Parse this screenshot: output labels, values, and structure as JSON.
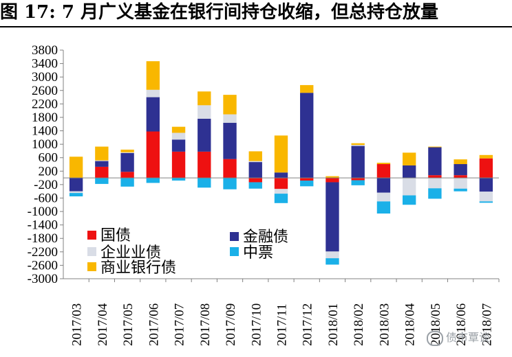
{
  "title": "图 17:  7 月广义基金在银行间持仓收缩，但总持仓放量",
  "watermark": "债市覃谈",
  "chart_data": {
    "type": "bar",
    "stacked": true,
    "categories": [
      "2017/03",
      "2017/04",
      "2017/05",
      "2017/06",
      "2017/07",
      "2017/08",
      "2017/09",
      "2017/10",
      "2017/11",
      "2017/12",
      "2018/01",
      "2018/02",
      "2018/03",
      "2018/04",
      "2018/05",
      "2018/06",
      "2018/07"
    ],
    "ylim": [
      -3000,
      3800
    ],
    "yticks": [
      3800,
      3400,
      3000,
      2600,
      2200,
      1800,
      1400,
      1000,
      600,
      200,
      -200,
      -600,
      -1000,
      -1400,
      -1800,
      -2200,
      -2600,
      -3000
    ],
    "ytick_labels": [
      "3800",
      "3400",
      "3000",
      "2600",
      "2200",
      "1800",
      "1400",
      "1000",
      "600",
      "200",
      "-200",
      "-600",
      "-1000",
      "-1400",
      "-1800",
      "-2200",
      "-2600",
      "-3000"
    ],
    "legend": {
      "placement": "lower-left-inside",
      "columns": 2
    },
    "series": [
      {
        "name": "国债",
        "color": "#ee1111",
        "values": [
          0,
          330,
          180,
          1380,
          780,
          780,
          560,
          -130,
          -330,
          -80,
          -130,
          -70,
          410,
          0,
          80,
          80,
          580
        ]
      },
      {
        "name": "金融债",
        "color": "#2e3192",
        "values": [
          -400,
          170,
          560,
          1020,
          360,
          980,
          1080,
          470,
          160,
          2530,
          -2060,
          950,
          -440,
          370,
          830,
          330,
          -410
        ]
      },
      {
        "name": "企业业债",
        "color": "#d9dde6",
        "values": [
          -50,
          20,
          20,
          220,
          200,
          400,
          250,
          30,
          -140,
          0,
          -200,
          30,
          -260,
          -520,
          -310,
          -320,
          -290
        ]
      },
      {
        "name": "中票",
        "color": "#1ab0e8",
        "values": [
          -100,
          -180,
          -260,
          -150,
          -80,
          -290,
          -340,
          -190,
          -280,
          -170,
          -190,
          -150,
          -360,
          -280,
          -310,
          -80,
          -40
        ]
      },
      {
        "name": "商业银行债",
        "color": "#f9b700",
        "values": [
          630,
          410,
          80,
          850,
          180,
          410,
          580,
          290,
          1100,
          230,
          50,
          50,
          40,
          380,
          20,
          140,
          100
        ]
      }
    ]
  },
  "legend_labels": {
    "guozhai": "国债",
    "jinrong": "金融债",
    "qiye": "企业业债",
    "zhongpiao": "中票",
    "shangye": "商业银行债"
  }
}
